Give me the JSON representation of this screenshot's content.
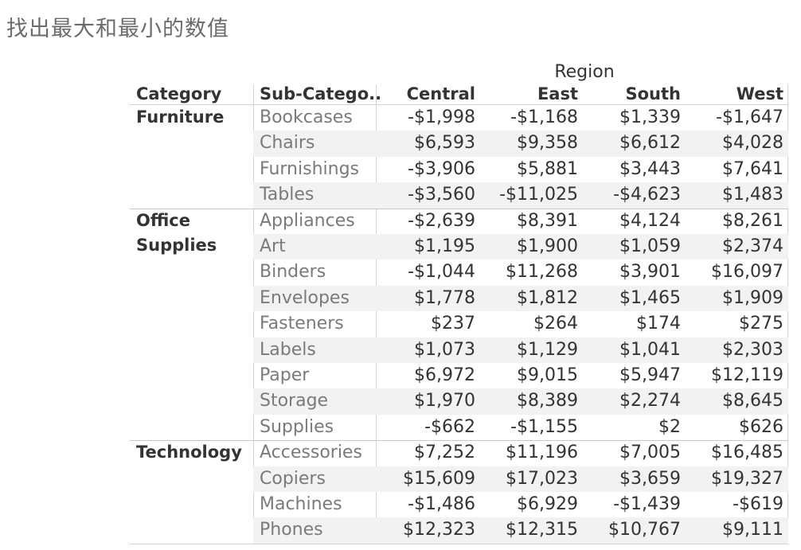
{
  "page_title": "找出最大和最小的数值",
  "crosstab": {
    "region_title": "Region",
    "headers": {
      "category": "Category",
      "subcategory": "Sub-Catego..",
      "central": "Central",
      "east": "East",
      "south": "South",
      "west": "West"
    },
    "groups": [
      {
        "category_lines": [
          "Furniture"
        ],
        "rows": [
          {
            "sub": "Bookcases",
            "central": "-$1,998",
            "east": "-$1,168",
            "south": "$1,339",
            "west": "-$1,647"
          },
          {
            "sub": "Chairs",
            "central": "$6,593",
            "east": "$9,358",
            "south": "$6,612",
            "west": "$4,028"
          },
          {
            "sub": "Furnishings",
            "central": "-$3,906",
            "east": "$5,881",
            "south": "$3,443",
            "west": "$7,641"
          },
          {
            "sub": "Tables",
            "central": "-$3,560",
            "east": "-$11,025",
            "south": "-$4,623",
            "west": "$1,483"
          }
        ]
      },
      {
        "category_lines": [
          "Office",
          "Supplies"
        ],
        "rows": [
          {
            "sub": "Appliances",
            "central": "-$2,639",
            "east": "$8,391",
            "south": "$4,124",
            "west": "$8,261"
          },
          {
            "sub": "Art",
            "central": "$1,195",
            "east": "$1,900",
            "south": "$1,059",
            "west": "$2,374"
          },
          {
            "sub": "Binders",
            "central": "-$1,044",
            "east": "$11,268",
            "south": "$3,901",
            "west": "$16,097"
          },
          {
            "sub": "Envelopes",
            "central": "$1,778",
            "east": "$1,812",
            "south": "$1,465",
            "west": "$1,909"
          },
          {
            "sub": "Fasteners",
            "central": "$237",
            "east": "$264",
            "south": "$174",
            "west": "$275"
          },
          {
            "sub": "Labels",
            "central": "$1,073",
            "east": "$1,129",
            "south": "$1,041",
            "west": "$2,303"
          },
          {
            "sub": "Paper",
            "central": "$6,972",
            "east": "$9,015",
            "south": "$5,947",
            "west": "$12,119"
          },
          {
            "sub": "Storage",
            "central": "$1,970",
            "east": "$8,389",
            "south": "$2,274",
            "west": "$8,645"
          },
          {
            "sub": "Supplies",
            "central": "-$662",
            "east": "-$1,155",
            "south": "$2",
            "west": "$626"
          }
        ]
      },
      {
        "category_lines": [
          "Technology"
        ],
        "rows": [
          {
            "sub": "Accessories",
            "central": "$7,252",
            "east": "$11,196",
            "south": "$7,005",
            "west": "$16,485"
          },
          {
            "sub": "Copiers",
            "central": "$15,609",
            "east": "$17,023",
            "south": "$3,659",
            "west": "$19,327"
          },
          {
            "sub": "Machines",
            "central": "-$1,486",
            "east": "$6,929",
            "south": "-$1,439",
            "west": "-$619"
          },
          {
            "sub": "Phones",
            "central": "$12,323",
            "east": "$12,315",
            "south": "$10,767",
            "west": "$9,111"
          }
        ]
      }
    ]
  }
}
